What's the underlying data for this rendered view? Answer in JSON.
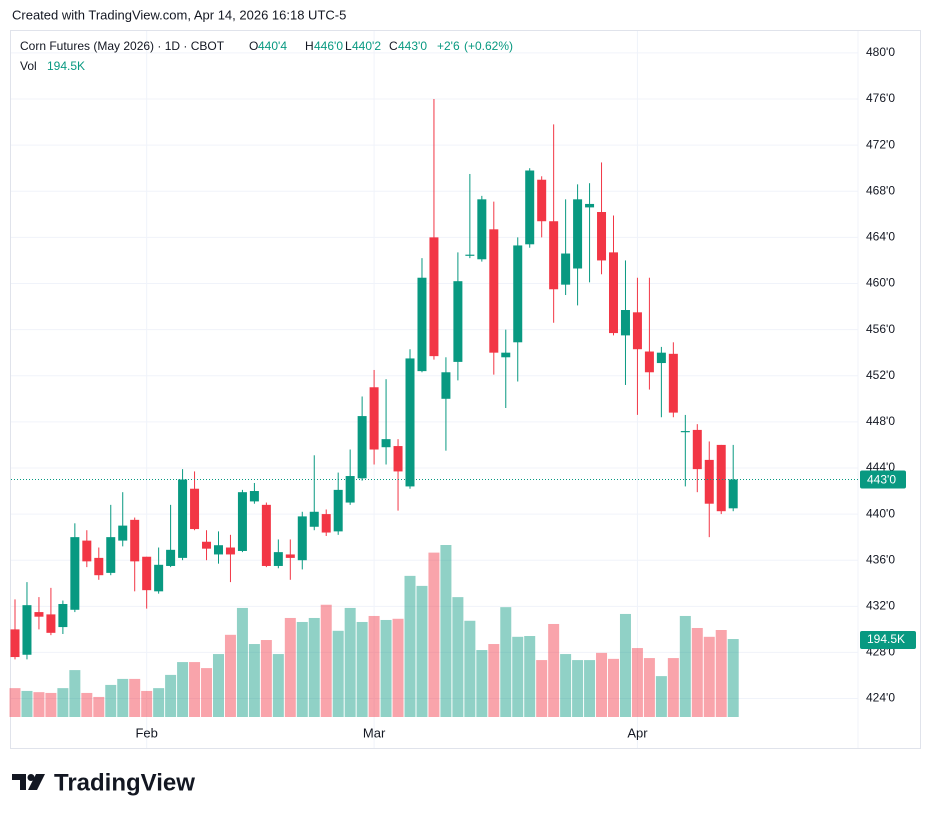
{
  "attribution": "Created with TradingView.com, Apr 14, 2026 16:18 UTC-5",
  "brand": "TradingView",
  "chart_data": {
    "type": "candlestick",
    "title": "Corn Futures (May 2026) · 1D · CBOT",
    "up_color": "#089981",
    "down_color": "#f23645",
    "grid": true,
    "categories": [
      null,
      null,
      null,
      null,
      null,
      null,
      null,
      null,
      null,
      null,
      null,
      "Feb",
      null,
      null,
      null,
      null,
      null,
      null,
      null,
      null,
      null,
      null,
      null,
      null,
      null,
      null,
      null,
      null,
      null,
      null,
      "Mar",
      null,
      null,
      null,
      null,
      null,
      null,
      null,
      null,
      null,
      null,
      null,
      null,
      null,
      null,
      null,
      null,
      null,
      null,
      null,
      null,
      null,
      "Apr",
      null,
      null,
      null,
      null,
      null,
      null,
      null,
      null
    ],
    "open": [
      430.0,
      427.8,
      431.5,
      431.3,
      430.2,
      431.7,
      437.7,
      436.2,
      434.9,
      437.7,
      439.5,
      436.3,
      433.3,
      435.5,
      436.2,
      442.2,
      437.6,
      436.5,
      437.1,
      436.8,
      441.1,
      440.8,
      435.5,
      436.5,
      436.0,
      438.9,
      440.0,
      438.5,
      441.0,
      443.1,
      451.0,
      445.8,
      445.9,
      442.4,
      452.4,
      464.0,
      450.0,
      453.2,
      462.4,
      462.1,
      464.7,
      453.6,
      454.9,
      463.4,
      469.0,
      465.4,
      459.9,
      461.3,
      466.6,
      466.2,
      462.7,
      455.5,
      457.5,
      454.1,
      453.1,
      453.9,
      447.1,
      447.3,
      444.7,
      446.0,
      440.5
    ],
    "high": [
      432.6,
      434.1,
      432.8,
      433.6,
      432.5,
      439.2,
      438.6,
      437.1,
      440.8,
      441.9,
      439.7,
      436.3,
      437.1,
      440.8,
      443.9,
      443.7,
      438.6,
      438.5,
      438.2,
      442.1,
      442.7,
      441.0,
      437.8,
      437.8,
      440.2,
      445.1,
      440.4,
      443.6,
      445.6,
      450.2,
      452.5,
      451.7,
      446.5,
      454.3,
      462.2,
      476.0,
      453.6,
      462.7,
      469.5,
      467.6,
      467.1,
      456.0,
      464.0,
      470.0,
      469.3,
      473.8,
      467.3,
      468.6,
      468.7,
      470.5,
      465.9,
      462.0,
      460.5,
      460.5,
      454.5,
      454.9,
      448.6,
      447.8,
      446.3,
      446.0,
      446.0
    ],
    "low": [
      427.4,
      427.4,
      430.0,
      429.5,
      429.6,
      431.5,
      435.4,
      434.3,
      434.7,
      437.2,
      433.3,
      431.8,
      433.1,
      435.4,
      436.0,
      438.6,
      436.0,
      435.7,
      434.1,
      436.7,
      440.9,
      435.4,
      435.3,
      434.3,
      435.2,
      438.6,
      438.1,
      438.2,
      440.8,
      442.9,
      444.3,
      444.3,
      440.3,
      442.2,
      452.3,
      453.4,
      445.5,
      451.6,
      462.2,
      461.9,
      452.1,
      449.2,
      451.5,
      463.1,
      464.0,
      456.6,
      459.0,
      458.1,
      460.1,
      460.8,
      455.5,
      451.2,
      448.6,
      450.8,
      448.4,
      448.4,
      442.4,
      441.9,
      438.0,
      440.0,
      440.25
    ],
    "close": [
      427.6,
      432.1,
      431.1,
      429.7,
      432.2,
      438.0,
      435.9,
      434.7,
      438.0,
      439.0,
      435.9,
      433.4,
      435.6,
      436.9,
      443.0,
      438.7,
      437.0,
      437.3,
      436.5,
      441.9,
      442.0,
      435.5,
      436.7,
      436.2,
      439.8,
      440.2,
      438.4,
      442.1,
      443.3,
      448.5,
      445.6,
      446.5,
      443.7,
      453.5,
      460.5,
      453.7,
      452.3,
      460.2,
      462.5,
      467.3,
      454.0,
      454.0,
      463.3,
      469.8,
      465.4,
      459.5,
      462.6,
      467.3,
      466.9,
      462.0,
      455.7,
      457.7,
      454.3,
      452.3,
      454.0,
      448.8,
      447.2,
      443.9,
      440.9,
      440.25,
      443.0
    ],
    "volume": [
      72000,
      65000,
      62000,
      60000,
      72000,
      117000,
      60000,
      50000,
      80000,
      95000,
      95000,
      65000,
      72000,
      105000,
      137000,
      137000,
      122000,
      157000,
      205000,
      272000,
      182000,
      192000,
      157000,
      247000,
      237000,
      247000,
      280000,
      215000,
      272000,
      237000,
      252000,
      242000,
      245000,
      352000,
      327000,
      410000,
      429000,
      299000,
      240000,
      167000,
      182000,
      274000,
      200000,
      202000,
      142000,
      232000,
      157000,
      142000,
      142000,
      160000,
      145000,
      257000,
      172000,
      147000,
      102000,
      147000,
      252000,
      222000,
      200000,
      217000,
      194500
    ],
    "ylim": [
      422.4,
      481.9
    ],
    "yticks": [
      {
        "value": 424,
        "label": "424'0"
      },
      {
        "value": 428,
        "label": "428'0"
      },
      {
        "value": 432,
        "label": "432'0"
      },
      {
        "value": 436,
        "label": "436'0"
      },
      {
        "value": 440,
        "label": "440'0"
      },
      {
        "value": 444,
        "label": "444'0"
      },
      {
        "value": 448,
        "label": "448'0"
      },
      {
        "value": 452,
        "label": "452'0"
      },
      {
        "value": 456,
        "label": "456'0"
      },
      {
        "value": 460,
        "label": "460'0"
      },
      {
        "value": 464,
        "label": "464'0"
      },
      {
        "value": 468,
        "label": "468'0"
      },
      {
        "value": 472,
        "label": "472'0"
      },
      {
        "value": 476,
        "label": "476'0"
      },
      {
        "value": 480,
        "label": "480'0"
      }
    ],
    "last_price": {
      "value": 443,
      "label": "443'0"
    },
    "legend": {
      "fields": [
        {
          "key": "O",
          "value": 440.5,
          "label": "440'4"
        },
        {
          "key": "H",
          "value": 446,
          "label": "446'0"
        },
        {
          "key": "L",
          "value": 440.25,
          "label": "440'2"
        },
        {
          "key": "C",
          "value": 443,
          "label": "443'0"
        }
      ],
      "change": {
        "value": 2.75,
        "label": "+2'6"
      },
      "change_pct": {
        "value": 0.62,
        "label": "(+0.62%)"
      },
      "volume_key": "Vol",
      "volume": {
        "value": 194500,
        "label": "194.5K"
      }
    }
  }
}
